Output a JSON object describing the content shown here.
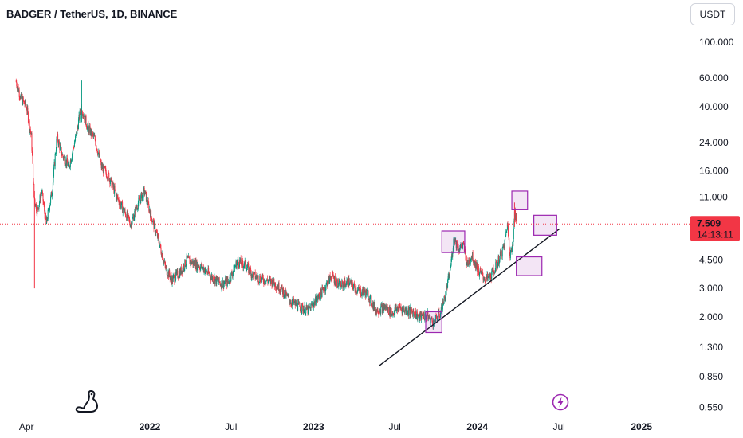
{
  "header": {
    "symbol_line": "BADGER / TetherUS, 1D, BINANCE"
  },
  "currency_button": {
    "label": "USDT"
  },
  "price_badge": {
    "price": "7.509",
    "countdown": "14:13:11",
    "color": "#f23645"
  },
  "colors": {
    "up": "#089981",
    "down": "#f23645",
    "annotation": "#9c27b0",
    "trendline": "#131722"
  },
  "icons": {
    "logo": "tradingview-dino-icon",
    "flash": "flash-icon"
  },
  "chart_data": {
    "type": "candlestick",
    "scale": "log",
    "ylim": [
      0.5,
      130
    ],
    "y_ticks": [
      100,
      60,
      40,
      24,
      16,
      11,
      7.509,
      4.5,
      3,
      2,
      1.3,
      0.85,
      0.55
    ],
    "y_tick_labels": [
      "100.000",
      "60.000",
      "40.000",
      "24.000",
      "16.000",
      "11.000",
      "7.509",
      "4.500",
      "3.000",
      "2.000",
      "1.300",
      "0.850",
      "0.550"
    ],
    "x_ticks": [
      "2021-04-01",
      "2022-01-01",
      "2022-07-01",
      "2023-01-01",
      "2023-07-01",
      "2024-01-01",
      "2024-07-01",
      "2025-01-01"
    ],
    "x_tick_labels": [
      "Apr",
      "2022",
      "Jul",
      "2023",
      "Jul",
      "2024",
      "Jul",
      "2025"
    ],
    "xlim": [
      "2021-02-01",
      "2025-04-20"
    ],
    "series": [
      {
        "values_close": [
          [
            "2021-03-08",
            58
          ],
          [
            "2021-03-20",
            45
          ],
          [
            "2021-04-01",
            40
          ],
          [
            "2021-04-12",
            26
          ],
          [
            "2021-04-18",
            11
          ],
          [
            "2021-04-25",
            9
          ],
          [
            "2021-05-05",
            12
          ],
          [
            "2021-05-15",
            7.5
          ],
          [
            "2021-05-28",
            12
          ],
          [
            "2021-06-08",
            26
          ],
          [
            "2021-06-20",
            20
          ],
          [
            "2021-07-05",
            17
          ],
          [
            "2021-07-20",
            26
          ],
          [
            "2021-08-01",
            40
          ],
          [
            "2021-08-15",
            30
          ],
          [
            "2021-09-01",
            25
          ],
          [
            "2021-09-15",
            17
          ],
          [
            "2021-10-01",
            15
          ],
          [
            "2021-10-20",
            11
          ],
          [
            "2021-11-05",
            9
          ],
          [
            "2021-11-20",
            7.5
          ],
          [
            "2021-12-05",
            10
          ],
          [
            "2021-12-20",
            12
          ],
          [
            "2022-01-01",
            9
          ],
          [
            "2022-01-20",
            6
          ],
          [
            "2022-02-05",
            4
          ],
          [
            "2022-02-20",
            3.4
          ],
          [
            "2022-03-10",
            3.8
          ],
          [
            "2022-03-25",
            4.5
          ],
          [
            "2022-04-15",
            4.2
          ],
          [
            "2022-05-01",
            4
          ],
          [
            "2022-05-20",
            3.5
          ],
          [
            "2022-06-10",
            3.2
          ],
          [
            "2022-06-25",
            3.3
          ],
          [
            "2022-07-15",
            4.4
          ],
          [
            "2022-08-01",
            4.2
          ],
          [
            "2022-08-20",
            3.6
          ],
          [
            "2022-09-10",
            3.4
          ],
          [
            "2022-10-01",
            3.3
          ],
          [
            "2022-10-20",
            3
          ],
          [
            "2022-11-10",
            2.5
          ],
          [
            "2022-12-01",
            2.3
          ],
          [
            "2022-12-20",
            2.2
          ],
          [
            "2023-01-10",
            2.6
          ],
          [
            "2023-01-25",
            3
          ],
          [
            "2023-02-10",
            3.6
          ],
          [
            "2023-03-01",
            3.1
          ],
          [
            "2023-03-20",
            3.3
          ],
          [
            "2023-04-10",
            2.9
          ],
          [
            "2023-05-01",
            2.8
          ],
          [
            "2023-05-20",
            2.2
          ],
          [
            "2023-06-10",
            2.3
          ],
          [
            "2023-06-25",
            2.1
          ],
          [
            "2023-07-10",
            2.3
          ],
          [
            "2023-07-25",
            2.2
          ],
          [
            "2023-08-10",
            2.15
          ],
          [
            "2023-08-25",
            2
          ],
          [
            "2023-09-10",
            2.05
          ],
          [
            "2023-09-25",
            1.85
          ],
          [
            "2023-10-10",
            2.1
          ],
          [
            "2023-10-20",
            2.6
          ],
          [
            "2023-11-01",
            3.8
          ],
          [
            "2023-11-10",
            6.2
          ],
          [
            "2023-11-20",
            5.3
          ],
          [
            "2023-12-01",
            5.5
          ],
          [
            "2023-12-10",
            4.2
          ],
          [
            "2023-12-20",
            4.8
          ],
          [
            "2024-01-05",
            3.8
          ],
          [
            "2024-01-20",
            3.4
          ],
          [
            "2024-02-01",
            3.6
          ],
          [
            "2024-02-15",
            4.3
          ],
          [
            "2024-03-01",
            5.5
          ],
          [
            "2024-03-08",
            7.6
          ],
          [
            "2024-03-14",
            4.9
          ],
          [
            "2024-03-20",
            5.4
          ],
          [
            "2024-03-24",
            9.6
          ],
          [
            "2024-03-28",
            7.5
          ]
        ]
      }
    ],
    "annotations": {
      "trendline": [
        [
          "2023-05-28",
          1.0
        ],
        [
          "2024-07-02",
          7.0
        ]
      ],
      "boxes": [
        {
          "x": [
            "2023-09-08",
            "2023-10-14"
          ],
          "y": [
            1.6,
            2.15
          ]
        },
        {
          "x": [
            "2023-10-14",
            "2023-12-04"
          ],
          "y": [
            5.0,
            6.8
          ]
        },
        {
          "x": [
            "2024-03-18",
            "2024-04-22"
          ],
          "y": [
            9.2,
            12.0
          ]
        },
        {
          "x": [
            "2024-03-28",
            "2024-05-24"
          ],
          "y": [
            3.6,
            4.7
          ]
        },
        {
          "x": [
            "2024-05-06",
            "2024-06-26"
          ],
          "y": [
            6.4,
            8.5
          ]
        }
      ]
    },
    "current_price": 7.509
  }
}
